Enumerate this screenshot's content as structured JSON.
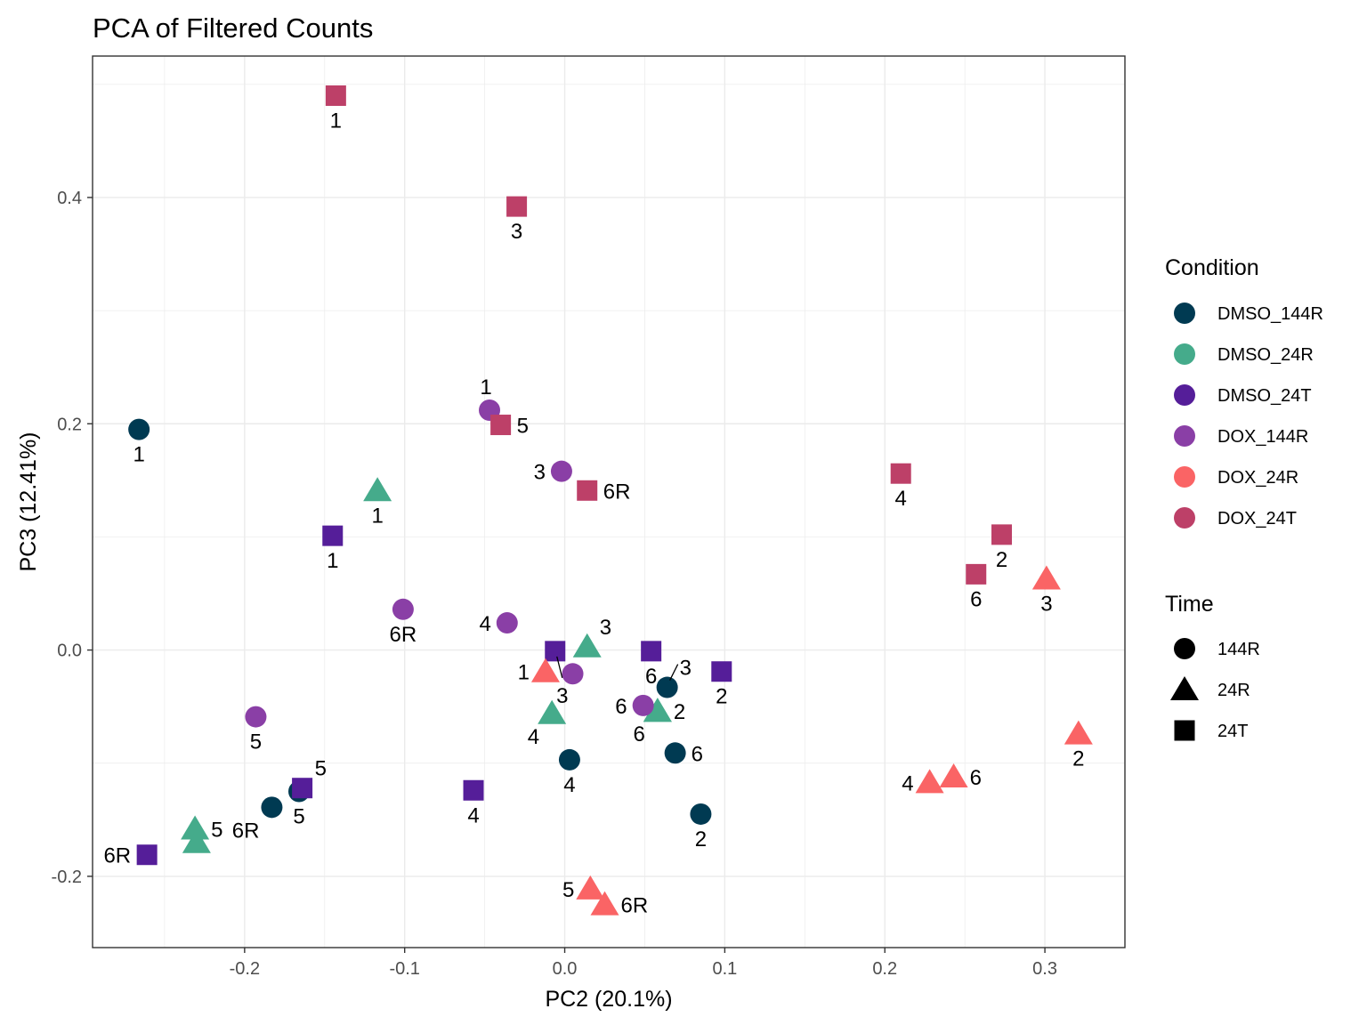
{
  "chart_data": {
    "type": "scatter",
    "title": "PCA of Filtered Counts",
    "xlabel": "PC2 (20.1%)",
    "ylabel": "PC3 (12.41%)",
    "xlim": [
      -0.295,
      0.35
    ],
    "ylim": [
      -0.263,
      0.525
    ],
    "x_ticks": [
      -0.2,
      -0.1,
      0.0,
      0.1,
      0.2,
      0.3
    ],
    "x_tick_labels": [
      "-0.2",
      "-0.1",
      "0.0",
      "0.1",
      "0.2",
      "0.3"
    ],
    "y_ticks": [
      -0.2,
      0.0,
      0.2,
      0.4
    ],
    "y_tick_labels": [
      "-0.2",
      "0.0",
      "0.2",
      "0.4"
    ],
    "grid": true,
    "legend_position": "right",
    "legend": {
      "color_title": "Condition",
      "shape_title": "Time",
      "conditions": [
        {
          "name": "DMSO_144R",
          "color": "#003a52"
        },
        {
          "name": "DMSO_24R",
          "color": "#45ab8b"
        },
        {
          "name": "DMSO_24T",
          "color": "#551e99"
        },
        {
          "name": "DOX_144R",
          "color": "#8a3fa6"
        },
        {
          "name": "DOX_24R",
          "color": "#fa6465"
        },
        {
          "name": "DOX_24T",
          "color": "#bd4068"
        }
      ],
      "times": [
        {
          "name": "144R",
          "shape": "circle"
        },
        {
          "name": "24R",
          "shape": "triangle"
        },
        {
          "name": "24T",
          "shape": "square"
        }
      ]
    },
    "points": [
      {
        "condition": "DMSO_144R",
        "time": "144R",
        "x": -0.266,
        "y": 0.195,
        "label": "1",
        "label_pos": "below"
      },
      {
        "condition": "DMSO_144R",
        "time": "144R",
        "x": 0.085,
        "y": -0.145,
        "label": "2",
        "label_pos": "below"
      },
      {
        "condition": "DMSO_144R",
        "time": "144R",
        "x": 0.064,
        "y": -0.033,
        "label": "3",
        "label_pos": "upright"
      },
      {
        "condition": "DMSO_144R",
        "time": "144R",
        "x": 0.003,
        "y": -0.097,
        "label": "4",
        "label_pos": "below"
      },
      {
        "condition": "DMSO_144R",
        "time": "144R",
        "x": -0.166,
        "y": -0.125,
        "label": "5",
        "label_pos": "below"
      },
      {
        "condition": "DMSO_144R",
        "time": "144R",
        "x": 0.069,
        "y": -0.091,
        "label": "6",
        "label_pos": "right"
      },
      {
        "condition": "DMSO_144R",
        "time": "144R",
        "x": -0.183,
        "y": -0.139,
        "label": "6R",
        "label_pos": "belowleft"
      },
      {
        "condition": "DMSO_24R",
        "time": "24R",
        "x": -0.117,
        "y": 0.141,
        "label": "1",
        "label_pos": "below"
      },
      {
        "condition": "DMSO_24R",
        "time": "24R",
        "x": 0.058,
        "y": -0.054,
        "label": "2",
        "label_pos": "right"
      },
      {
        "condition": "DMSO_24R",
        "time": "24R",
        "x": 0.014,
        "y": 0.003,
        "label": "3",
        "label_pos": "upright"
      },
      {
        "condition": "DMSO_24R",
        "time": "24R",
        "x": -0.008,
        "y": -0.056,
        "label": "4",
        "label_pos": "belowleft"
      },
      {
        "condition": "DMSO_24R",
        "time": "24R",
        "x": -0.231,
        "y": -0.158,
        "label": "5",
        "label_pos": "right"
      },
      {
        "condition": "DMSO_24R",
        "time": "24R",
        "x": 0.058,
        "y": -0.054,
        "label": "6",
        "label_pos": "belowleft"
      },
      {
        "condition": "DMSO_24R",
        "time": "24R",
        "x": -0.23,
        "y": -0.17,
        "label": "6R",
        "label_pos": "none"
      },
      {
        "condition": "DMSO_24T",
        "time": "24T",
        "x": -0.145,
        "y": 0.101,
        "label": "1",
        "label_pos": "below"
      },
      {
        "condition": "DMSO_24T",
        "time": "24T",
        "x": 0.098,
        "y": -0.019,
        "label": "2",
        "label_pos": "below"
      },
      {
        "condition": "DMSO_24T",
        "time": "24T",
        "x": -0.006,
        "y": -0.001,
        "label": "3",
        "label_pos": "leaderbelow"
      },
      {
        "condition": "DMSO_24T",
        "time": "24T",
        "x": -0.057,
        "y": -0.124,
        "label": "4",
        "label_pos": "below"
      },
      {
        "condition": "DMSO_24T",
        "time": "24T",
        "x": -0.164,
        "y": -0.122,
        "label": "5",
        "label_pos": "upright"
      },
      {
        "condition": "DMSO_24T",
        "time": "24T",
        "x": 0.054,
        "y": -0.001,
        "label": "6",
        "label_pos": "below"
      },
      {
        "condition": "DMSO_24T",
        "time": "24T",
        "x": -0.261,
        "y": -0.181,
        "label": "6R",
        "label_pos": "left"
      },
      {
        "condition": "DOX_144R",
        "time": "144R",
        "x": -0.047,
        "y": 0.212,
        "label": "1",
        "label_pos": "upleft"
      },
      {
        "condition": "DOX_144R",
        "time": "144R",
        "x": -0.002,
        "y": 0.158,
        "label": "3",
        "label_pos": "left"
      },
      {
        "condition": "DOX_144R",
        "time": "144R",
        "x": -0.036,
        "y": 0.024,
        "label": "4",
        "label_pos": "left"
      },
      {
        "condition": "DOX_144R",
        "time": "144R",
        "x": -0.193,
        "y": -0.059,
        "label": "5",
        "label_pos": "below"
      },
      {
        "condition": "DOX_144R",
        "time": "144R",
        "x": 0.049,
        "y": -0.049,
        "label": "6",
        "label_pos": "left"
      },
      {
        "condition": "DOX_144R",
        "time": "144R",
        "x": -0.101,
        "y": 0.036,
        "label": "6R",
        "label_pos": "below"
      },
      {
        "condition": "DOX_144R",
        "time": "144R",
        "x": 0.005,
        "y": -0.021,
        "label": "",
        "label_pos": "none"
      },
      {
        "condition": "DOX_24R",
        "time": "24R",
        "x": -0.012,
        "y": -0.019,
        "label": "1",
        "label_pos": "left"
      },
      {
        "condition": "DOX_24R",
        "time": "24R",
        "x": 0.321,
        "y": -0.074,
        "label": "2",
        "label_pos": "below"
      },
      {
        "condition": "DOX_24R",
        "time": "24R",
        "x": 0.301,
        "y": 0.063,
        "label": "3",
        "label_pos": "below"
      },
      {
        "condition": "DOX_24R",
        "time": "24R",
        "x": 0.228,
        "y": -0.117,
        "label": "4",
        "label_pos": "left"
      },
      {
        "condition": "DOX_24R",
        "time": "24R",
        "x": 0.016,
        "y": -0.211,
        "label": "5",
        "label_pos": "left"
      },
      {
        "condition": "DOX_24R",
        "time": "24R",
        "x": 0.243,
        "y": -0.112,
        "label": "6",
        "label_pos": "right"
      },
      {
        "condition": "DOX_24R",
        "time": "24R",
        "x": 0.025,
        "y": -0.225,
        "label": "6R",
        "label_pos": "right"
      },
      {
        "condition": "DOX_24T",
        "time": "24T",
        "x": -0.143,
        "y": 0.49,
        "label": "1",
        "label_pos": "below"
      },
      {
        "condition": "DOX_24T",
        "time": "24T",
        "x": 0.273,
        "y": 0.102,
        "label": "2",
        "label_pos": "below"
      },
      {
        "condition": "DOX_24T",
        "time": "24T",
        "x": -0.03,
        "y": 0.392,
        "label": "3",
        "label_pos": "below"
      },
      {
        "condition": "DOX_24T",
        "time": "24T",
        "x": 0.21,
        "y": 0.156,
        "label": "4",
        "label_pos": "below"
      },
      {
        "condition": "DOX_24T",
        "time": "24T",
        "x": -0.04,
        "y": 0.199,
        "label": "5",
        "label_pos": "right"
      },
      {
        "condition": "DOX_24T",
        "time": "24T",
        "x": 0.257,
        "y": 0.067,
        "label": "6",
        "label_pos": "below"
      },
      {
        "condition": "DOX_24T",
        "time": "24T",
        "x": 0.014,
        "y": 0.141,
        "label": "6R",
        "label_pos": "right"
      }
    ]
  }
}
